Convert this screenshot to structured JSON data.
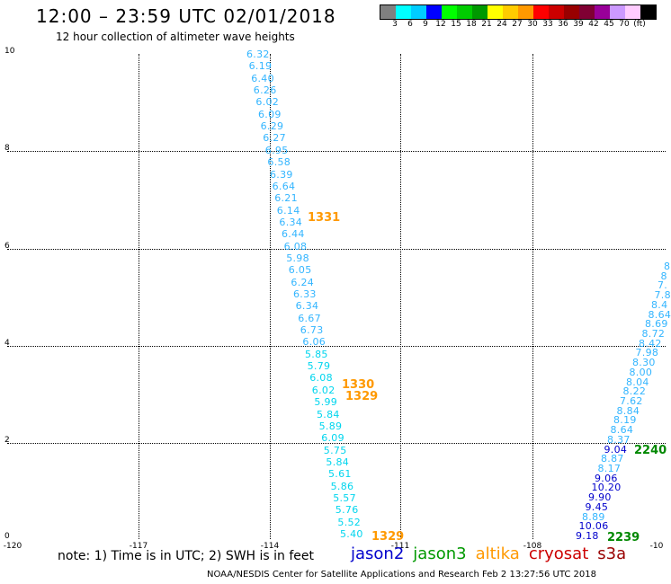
{
  "header": {
    "title": "12:00 – 23:59 UTC 02/01/2018",
    "subtitle": "12 hour collection of altimeter wave heights"
  },
  "colorbar": {
    "colors": [
      "#808080",
      "#00ffff",
      "#00ccff",
      "#0000ff",
      "#00ff00",
      "#00cc00",
      "#009900",
      "#ffff00",
      "#ffcc00",
      "#ff9900",
      "#ff0000",
      "#cc0000",
      "#990000",
      "#800033",
      "#990099",
      "#cc99ff",
      "#ffccff",
      "#000000"
    ],
    "labels": [
      "3",
      "6",
      "9",
      "12",
      "15",
      "18",
      "21",
      "24",
      "27",
      "30",
      "33",
      "36",
      "39",
      "42",
      "45",
      "70",
      "(ft)"
    ]
  },
  "axes": {
    "y_ticks": [
      "10",
      "8",
      "6",
      "4",
      "2",
      "0"
    ],
    "x_ticks": [
      "-120",
      "-117",
      "-114",
      "-111",
      "-108",
      "-10"
    ]
  },
  "tracks": {
    "track_a": {
      "color": "#33b5ff",
      "values": [
        "6.32",
        "6.19",
        "6.40",
        "6.26",
        "6.02",
        "6.09",
        "6.29",
        "6.27",
        "6.95",
        "6.58",
        "6.39",
        "6.64",
        "6.21",
        "6.14",
        "6.34",
        "6.44",
        "6.08",
        "5.98",
        "6.05",
        "6.24",
        "6.33",
        "6.34",
        "6.67",
        "6.73",
        "6.06",
        "5.85",
        "5.79",
        "6.08",
        "6.02",
        "5.99",
        "5.84",
        "5.89",
        "6.09",
        "5.75",
        "5.84",
        "5.61",
        "5.86",
        "5.57",
        "5.76",
        "5.52",
        "5.40"
      ]
    },
    "track_b": {
      "values": [
        {
          "v": "9.18",
          "c": "#0000cc"
        },
        {
          "v": "10.06",
          "c": "#0000cc"
        },
        {
          "v": "8.89",
          "c": "#33b5ff"
        },
        {
          "v": "9.45",
          "c": "#0000cc"
        },
        {
          "v": "9.90",
          "c": "#0000cc"
        },
        {
          "v": "10.20",
          "c": "#0000cc"
        },
        {
          "v": "9.06",
          "c": "#0000cc"
        },
        {
          "v": "8.17",
          "c": "#33b5ff"
        },
        {
          "v": "8.87",
          "c": "#33b5ff"
        },
        {
          "v": "9.04",
          "c": "#0000cc"
        },
        {
          "v": "8.37",
          "c": "#33b5ff"
        },
        {
          "v": "8.64",
          "c": "#33b5ff"
        },
        {
          "v": "8.19",
          "c": "#33b5ff"
        },
        {
          "v": "8.84",
          "c": "#33b5ff"
        },
        {
          "v": "7.62",
          "c": "#33b5ff"
        },
        {
          "v": "8.22",
          "c": "#33b5ff"
        },
        {
          "v": "8.04",
          "c": "#33b5ff"
        },
        {
          "v": "8.00",
          "c": "#33b5ff"
        },
        {
          "v": "8.30",
          "c": "#33b5ff"
        },
        {
          "v": "7.98",
          "c": "#33b5ff"
        },
        {
          "v": "8.42",
          "c": "#33b5ff"
        },
        {
          "v": "8.72",
          "c": "#33b5ff"
        },
        {
          "v": "8.69",
          "c": "#33b5ff"
        },
        {
          "v": "8.64",
          "c": "#33b5ff"
        },
        {
          "v": "8.4",
          "c": "#33b5ff"
        },
        {
          "v": "7.8",
          "c": "#33b5ff"
        },
        {
          "v": "7.",
          "c": "#33b5ff"
        },
        {
          "v": "8",
          "c": "#33b5ff"
        },
        {
          "v": "8",
          "c": "#33b5ff"
        }
      ]
    }
  },
  "pass_times": [
    {
      "label": "1331",
      "color": "#ff9900"
    },
    {
      "label": "1330",
      "color": "#ff9900"
    },
    {
      "label": "1329",
      "color": "#ff9900"
    },
    {
      "label": "1329",
      "color": "#ff9900"
    },
    {
      "label": "2240",
      "color": "#008800"
    },
    {
      "label": "2239",
      "color": "#008800"
    }
  ],
  "note": "note: 1) Time is in UTC; 2) SWH is in feet",
  "satellites": [
    {
      "name": "jason2",
      "color": "#0000cc"
    },
    {
      "name": "jason3",
      "color": "#009900"
    },
    {
      "name": "altika",
      "color": "#ff9900"
    },
    {
      "name": "cryosat",
      "color": "#cc0000"
    },
    {
      "name": "s3a",
      "color": "#990000"
    }
  ],
  "footer": "NOAA/NESDIS Center for Satellite Applications and Research   Feb  2 13:27:56 UTC 2018"
}
